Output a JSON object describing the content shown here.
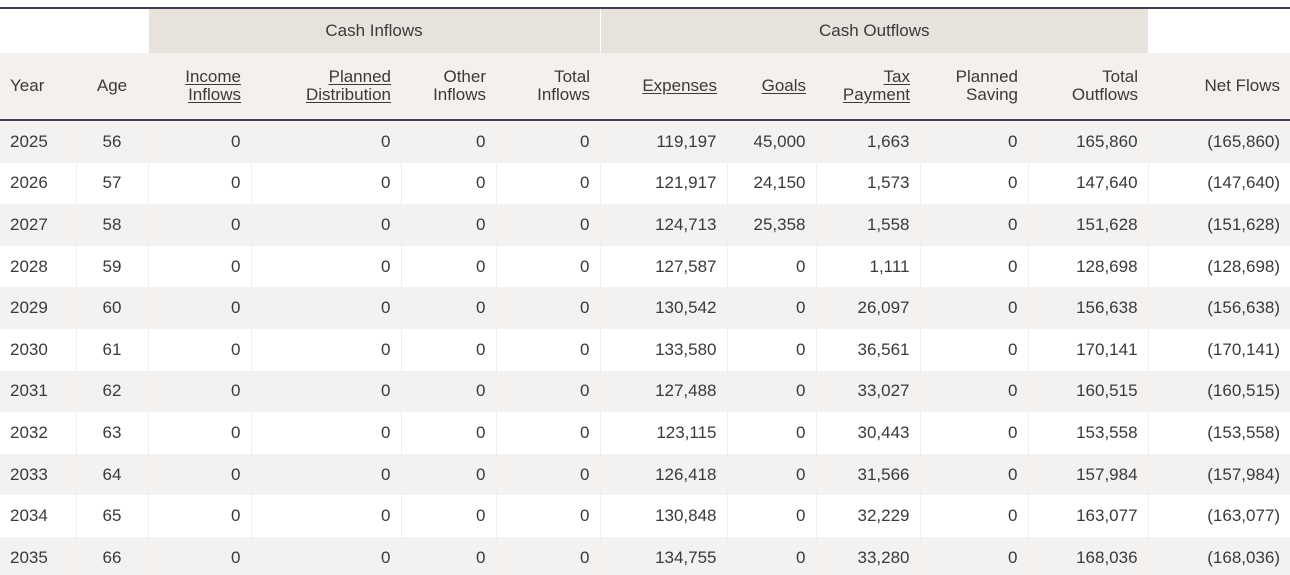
{
  "groups": {
    "inflows": "Cash Inflows",
    "outflows": "Cash Outflows"
  },
  "headers": {
    "year": "Year",
    "age": "Age",
    "income_inflows": [
      "Income",
      "Inflows"
    ],
    "planned_distribution": [
      "Planned",
      "Distribution"
    ],
    "other_inflows": [
      "Other",
      "Inflows"
    ],
    "total_inflows": [
      "Total",
      "Inflows"
    ],
    "expenses": "Expenses",
    "goals": "Goals",
    "tax_payment": [
      "Tax",
      "Payment"
    ],
    "planned_saving": [
      "Planned",
      "Saving"
    ],
    "total_outflows": [
      "Total",
      "Outflows"
    ],
    "net_flows": "Net Flows"
  },
  "rows": [
    [
      "2025",
      "56",
      "0",
      "0",
      "0",
      "0",
      "119,197",
      "45,000",
      "1,663",
      "0",
      "165,860",
      "(165,860)"
    ],
    [
      "2026",
      "57",
      "0",
      "0",
      "0",
      "0",
      "121,917",
      "24,150",
      "1,573",
      "0",
      "147,640",
      "(147,640)"
    ],
    [
      "2027",
      "58",
      "0",
      "0",
      "0",
      "0",
      "124,713",
      "25,358",
      "1,558",
      "0",
      "151,628",
      "(151,628)"
    ],
    [
      "2028",
      "59",
      "0",
      "0",
      "0",
      "0",
      "127,587",
      "0",
      "1,111",
      "0",
      "128,698",
      "(128,698)"
    ],
    [
      "2029",
      "60",
      "0",
      "0",
      "0",
      "0",
      "130,542",
      "0",
      "26,097",
      "0",
      "156,638",
      "(156,638)"
    ],
    [
      "2030",
      "61",
      "0",
      "0",
      "0",
      "0",
      "133,580",
      "0",
      "36,561",
      "0",
      "170,141",
      "(170,141)"
    ],
    [
      "2031",
      "62",
      "0",
      "0",
      "0",
      "0",
      "127,488",
      "0",
      "33,027",
      "0",
      "160,515",
      "(160,515)"
    ],
    [
      "2032",
      "63",
      "0",
      "0",
      "0",
      "0",
      "123,115",
      "0",
      "30,443",
      "0",
      "153,558",
      "(153,558)"
    ],
    [
      "2033",
      "64",
      "0",
      "0",
      "0",
      "0",
      "126,418",
      "0",
      "31,566",
      "0",
      "157,984",
      "(157,984)"
    ],
    [
      "2034",
      "65",
      "0",
      "0",
      "0",
      "0",
      "130,848",
      "0",
      "32,229",
      "0",
      "163,077",
      "(163,077)"
    ],
    [
      "2035",
      "66",
      "0",
      "0",
      "0",
      "0",
      "134,755",
      "0",
      "33,280",
      "0",
      "168,036",
      "(168,036)"
    ]
  ]
}
